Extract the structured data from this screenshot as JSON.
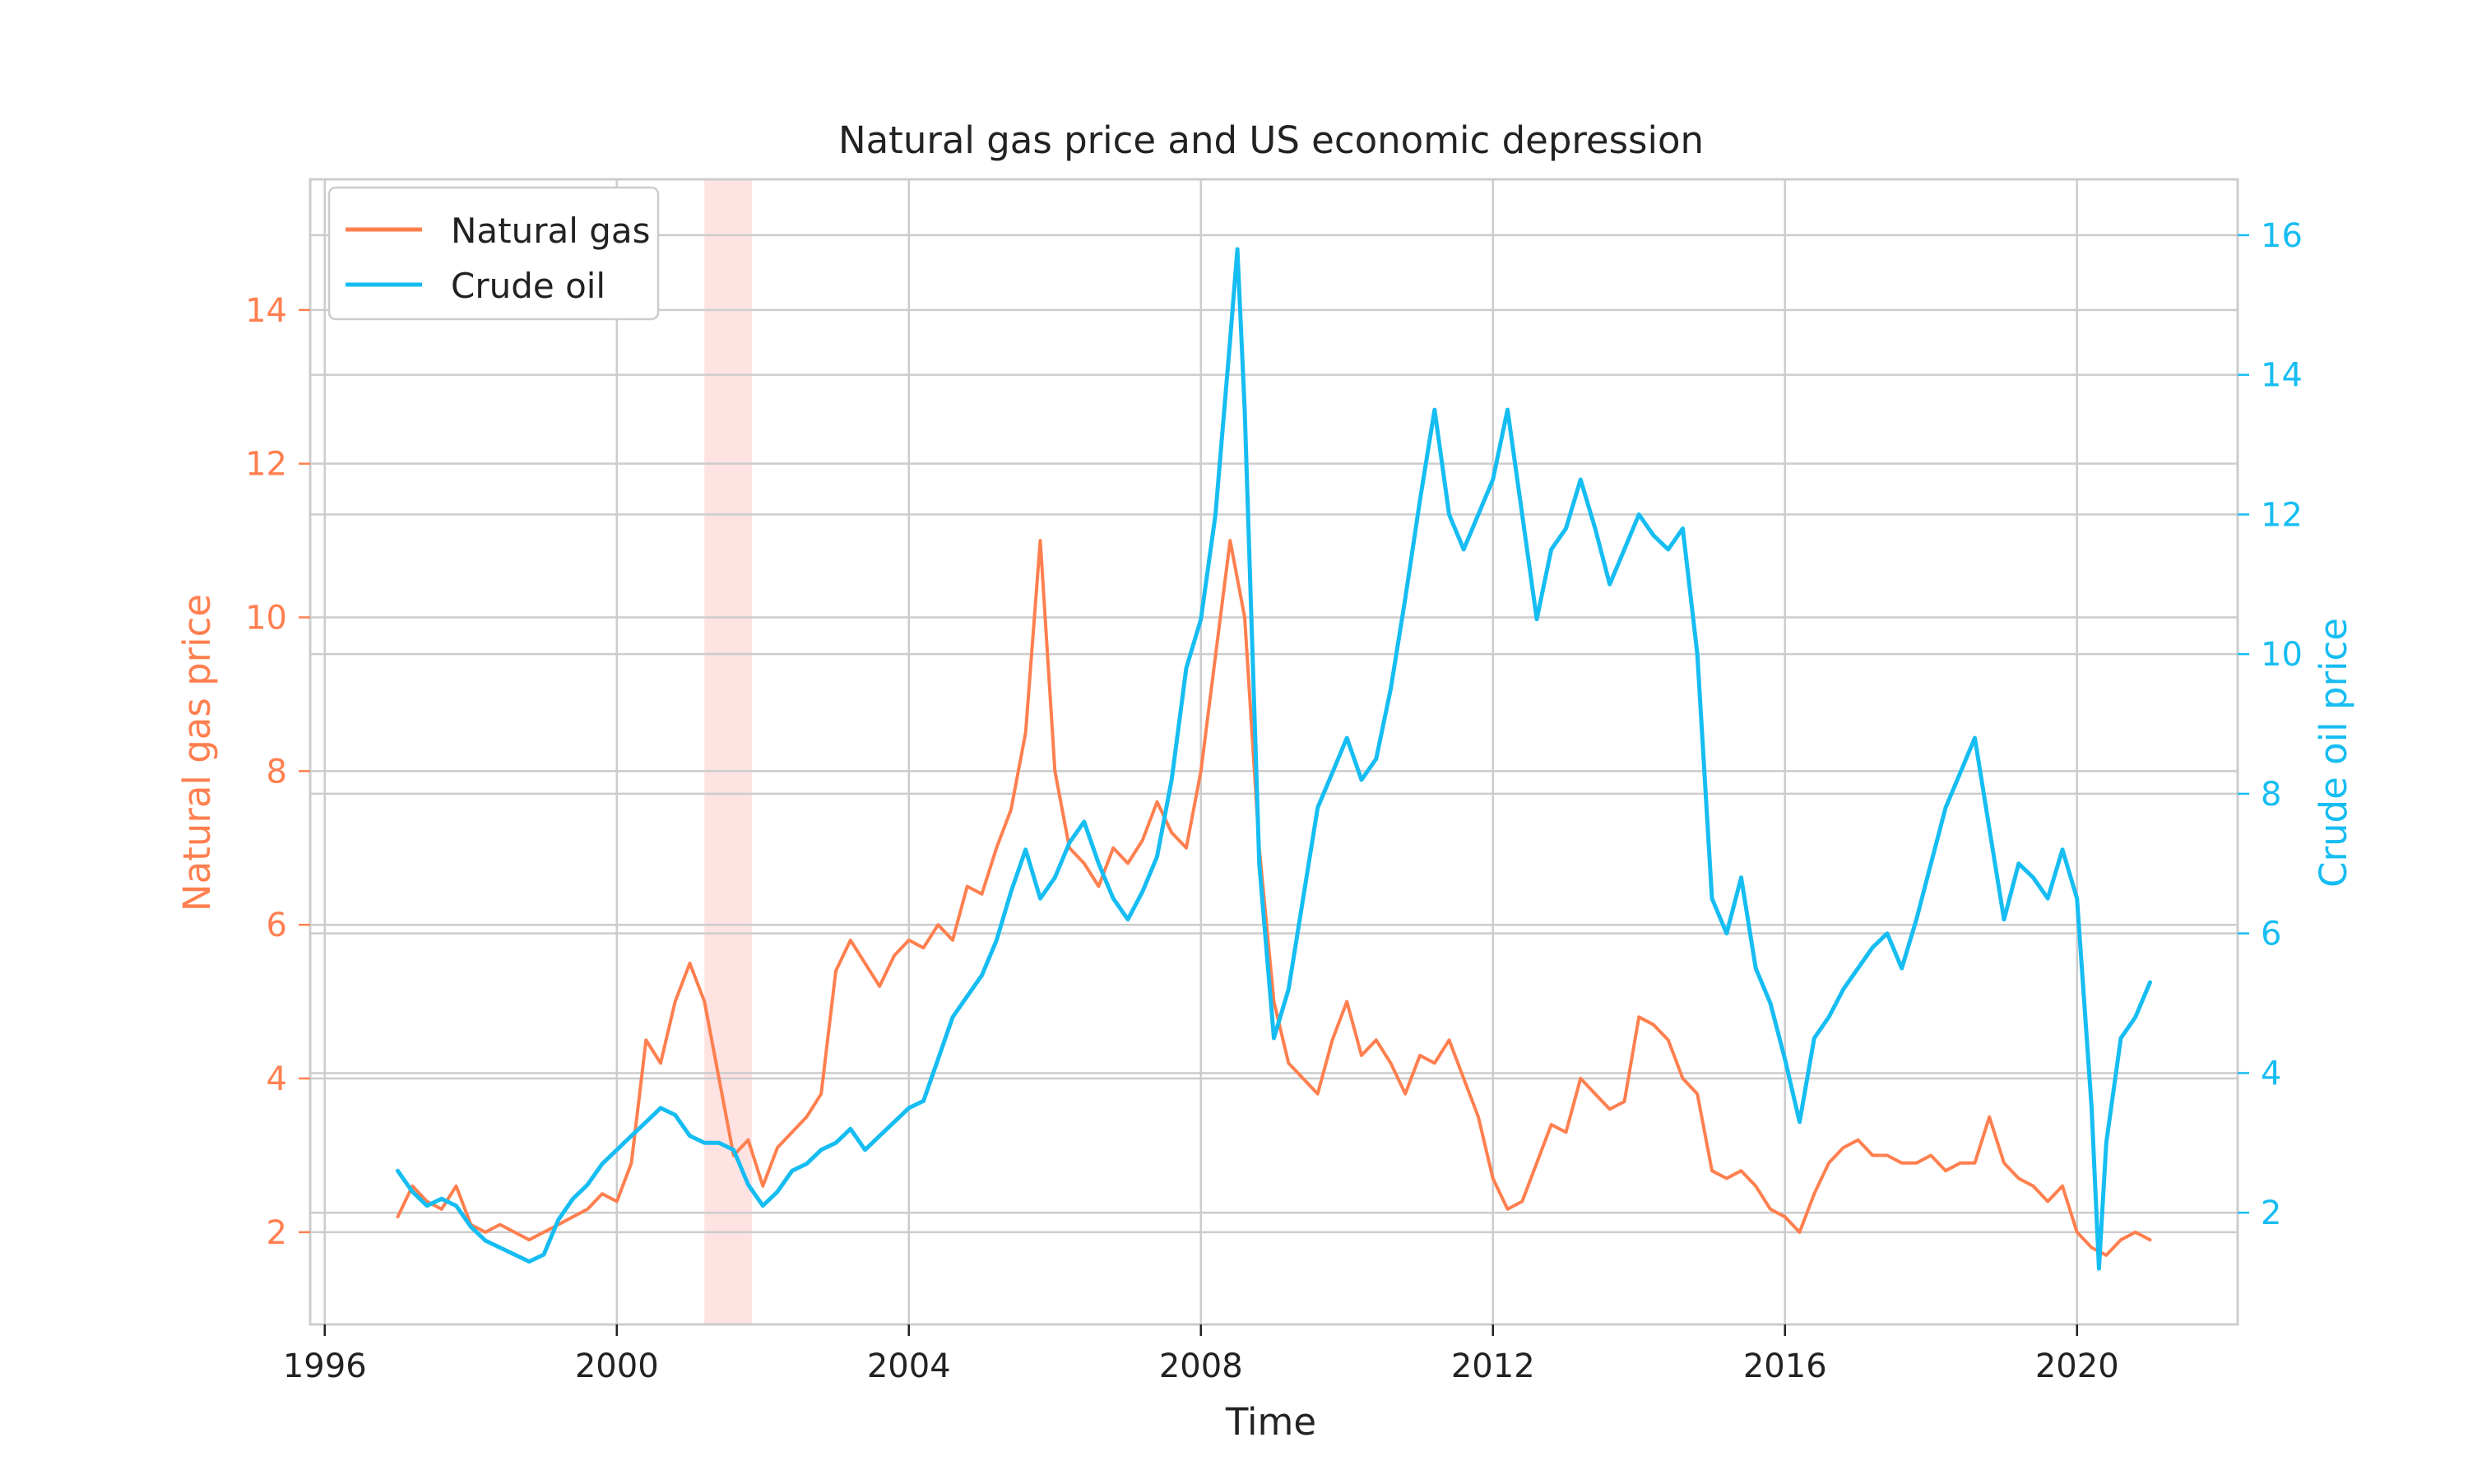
{
  "chart_data": {
    "type": "line",
    "title": "Natural gas price and US economic depression",
    "xlabel": "Time",
    "ylabel_left": "Natural gas price",
    "ylabel_right": "Crude oil price",
    "x_ticks": [
      "1996",
      "2000",
      "2004",
      "2008",
      "2012",
      "2016",
      "2020"
    ],
    "x_tick_values": [
      1996,
      2000,
      2004,
      2008,
      2012,
      2016,
      2020
    ],
    "xlim": [
      1995.8,
      2022.2
    ],
    "ylim_left": [
      0.8,
      15.7
    ],
    "ylim_right": [
      0.4,
      16.8
    ],
    "y_ticks_left": [
      "2",
      "4",
      "6",
      "8",
      "10",
      "12",
      "14"
    ],
    "y_tick_values_left": [
      2,
      4,
      6,
      8,
      10,
      12,
      14
    ],
    "y_ticks_right": [
      "2",
      "4",
      "6",
      "8",
      "10",
      "12",
      "14",
      "16"
    ],
    "y_tick_values_right": [
      2,
      4,
      6,
      8,
      10,
      12,
      14,
      16
    ],
    "grid": true,
    "legend_position": "top-left",
    "recession_band": {
      "start": 2001.2,
      "end": 2001.85,
      "color": "#ffdddd"
    },
    "series": [
      {
        "name": "Natural gas",
        "axis": "left",
        "color": "#ff7f4f",
        "x": [
          1997.0,
          1997.2,
          1997.4,
          1997.6,
          1997.8,
          1998.0,
          1998.2,
          1998.4,
          1998.6,
          1998.8,
          1999.0,
          1999.2,
          1999.4,
          1999.6,
          1999.8,
          2000.0,
          2000.2,
          2000.4,
          2000.6,
          2000.8,
          2001.0,
          2001.2,
          2001.4,
          2001.6,
          2001.8,
          2002.0,
          2002.2,
          2002.4,
          2002.6,
          2002.8,
          2003.0,
          2003.2,
          2003.4,
          2003.6,
          2003.8,
          2004.0,
          2004.2,
          2004.4,
          2004.6,
          2004.8,
          2005.0,
          2005.2,
          2005.4,
          2005.6,
          2005.8,
          2006.0,
          2006.2,
          2006.4,
          2006.6,
          2006.8,
          2007.0,
          2007.2,
          2007.4,
          2007.6,
          2007.8,
          2008.0,
          2008.2,
          2008.4,
          2008.6,
          2008.8,
          2009.0,
          2009.2,
          2009.4,
          2009.6,
          2009.8,
          2010.0,
          2010.2,
          2010.4,
          2010.6,
          2010.8,
          2011.0,
          2011.2,
          2011.4,
          2011.6,
          2011.8,
          2012.0,
          2012.2,
          2012.4,
          2012.6,
          2012.8,
          2013.0,
          2013.2,
          2013.4,
          2013.6,
          2013.8,
          2014.0,
          2014.2,
          2014.4,
          2014.6,
          2014.8,
          2015.0,
          2015.2,
          2015.4,
          2015.6,
          2015.8,
          2016.0,
          2016.2,
          2016.4,
          2016.6,
          2016.8,
          2017.0,
          2017.2,
          2017.4,
          2017.6,
          2017.8,
          2018.0,
          2018.2,
          2018.4,
          2018.6,
          2018.8,
          2019.0,
          2019.2,
          2019.4,
          2019.6,
          2019.8,
          2020.0,
          2020.2,
          2020.4,
          2020.6,
          2020.8,
          2021.0
        ],
        "values": [
          2.2,
          2.6,
          2.4,
          2.3,
          2.6,
          2.1,
          2.0,
          2.1,
          2.0,
          1.9,
          2.0,
          2.1,
          2.2,
          2.3,
          2.5,
          2.4,
          2.9,
          4.5,
          4.2,
          5.0,
          5.5,
          5.0,
          4.0,
          3.0,
          3.2,
          2.6,
          3.1,
          3.3,
          3.5,
          3.8,
          5.4,
          5.8,
          5.5,
          5.2,
          5.6,
          5.8,
          5.7,
          6.0,
          5.8,
          6.5,
          6.4,
          7.0,
          7.5,
          8.5,
          11.0,
          8.0,
          7.0,
          6.8,
          6.5,
          7.0,
          6.8,
          7.1,
          7.6,
          7.2,
          7.0,
          8.0,
          9.5,
          11.0,
          10.0,
          7.0,
          5.0,
          4.2,
          4.0,
          3.8,
          4.5,
          5.0,
          4.3,
          4.5,
          4.2,
          3.8,
          4.3,
          4.2,
          4.5,
          4.0,
          3.5,
          2.7,
          2.3,
          2.4,
          2.9,
          3.4,
          3.3,
          4.0,
          3.8,
          3.6,
          3.7,
          4.8,
          4.7,
          4.5,
          4.0,
          3.8,
          2.8,
          2.7,
          2.8,
          2.6,
          2.3,
          2.2,
          2.0,
          2.5,
          2.9,
          3.1,
          3.2,
          3.0,
          3.0,
          2.9,
          2.9,
          3.0,
          2.8,
          2.9,
          2.9,
          3.5,
          2.9,
          2.7,
          2.6,
          2.4,
          2.6,
          2.0,
          1.8,
          1.7,
          1.9,
          2.0,
          1.9
        ]
      },
      {
        "name": "Crude oil",
        "axis": "right",
        "color": "#16bdf2",
        "x": [
          1997.0,
          1997.2,
          1997.4,
          1997.6,
          1997.8,
          1998.0,
          1998.2,
          1998.4,
          1998.6,
          1998.8,
          1999.0,
          1999.2,
          1999.4,
          1999.6,
          1999.8,
          2000.0,
          2000.2,
          2000.4,
          2000.6,
          2000.8,
          2001.0,
          2001.2,
          2001.4,
          2001.6,
          2001.8,
          2002.0,
          2002.2,
          2002.4,
          2002.6,
          2002.8,
          2003.0,
          2003.2,
          2003.4,
          2003.6,
          2003.8,
          2004.0,
          2004.2,
          2004.4,
          2004.6,
          2004.8,
          2005.0,
          2005.2,
          2005.4,
          2005.6,
          2005.8,
          2006.0,
          2006.2,
          2006.4,
          2006.6,
          2006.8,
          2007.0,
          2007.2,
          2007.4,
          2007.6,
          2007.8,
          2008.0,
          2008.2,
          2008.4,
          2008.5,
          2008.6,
          2008.8,
          2009.0,
          2009.2,
          2009.4,
          2009.6,
          2009.8,
          2010.0,
          2010.2,
          2010.4,
          2010.6,
          2010.8,
          2011.0,
          2011.2,
          2011.4,
          2011.6,
          2011.8,
          2012.0,
          2012.2,
          2012.4,
          2012.6,
          2012.8,
          2013.0,
          2013.2,
          2013.4,
          2013.6,
          2013.8,
          2014.0,
          2014.2,
          2014.4,
          2014.6,
          2014.8,
          2015.0,
          2015.2,
          2015.4,
          2015.6,
          2015.8,
          2016.0,
          2016.2,
          2016.4,
          2016.6,
          2016.8,
          2017.0,
          2017.2,
          2017.4,
          2017.6,
          2017.8,
          2018.0,
          2018.2,
          2018.4,
          2018.6,
          2018.8,
          2019.0,
          2019.2,
          2019.4,
          2019.6,
          2019.8,
          2020.0,
          2020.2,
          2020.3,
          2020.4,
          2020.6,
          2020.8,
          2021.0
        ],
        "values": [
          2.6,
          2.3,
          2.1,
          2.2,
          2.1,
          1.8,
          1.6,
          1.5,
          1.4,
          1.3,
          1.4,
          1.9,
          2.2,
          2.4,
          2.7,
          2.9,
          3.1,
          3.3,
          3.5,
          3.4,
          3.1,
          3.0,
          3.0,
          2.9,
          2.4,
          2.1,
          2.3,
          2.6,
          2.7,
          2.9,
          3.0,
          3.2,
          2.9,
          3.1,
          3.3,
          3.5,
          3.6,
          4.2,
          4.8,
          5.1,
          5.4,
          5.9,
          6.6,
          7.2,
          6.5,
          6.8,
          7.3,
          7.6,
          7.0,
          6.5,
          6.2,
          6.6,
          7.1,
          8.2,
          9.8,
          10.5,
          12.0,
          14.5,
          15.8,
          13.5,
          7.0,
          4.5,
          5.2,
          6.5,
          7.8,
          8.3,
          8.8,
          8.2,
          8.5,
          9.5,
          10.8,
          12.2,
          13.5,
          12.0,
          11.5,
          12.0,
          12.5,
          13.5,
          12.0,
          10.5,
          11.5,
          11.8,
          12.5,
          11.8,
          11.0,
          11.5,
          12.0,
          11.7,
          11.5,
          11.8,
          10.0,
          6.5,
          6.0,
          6.8,
          5.5,
          5.0,
          4.2,
          3.3,
          4.5,
          4.8,
          5.2,
          5.5,
          5.8,
          6.0,
          5.5,
          6.2,
          7.0,
          7.8,
          8.3,
          8.8,
          7.5,
          6.2,
          7.0,
          6.8,
          6.5,
          7.2,
          6.5,
          3.5,
          1.2,
          3.0,
          4.5,
          4.8,
          5.3
        ]
      }
    ]
  }
}
